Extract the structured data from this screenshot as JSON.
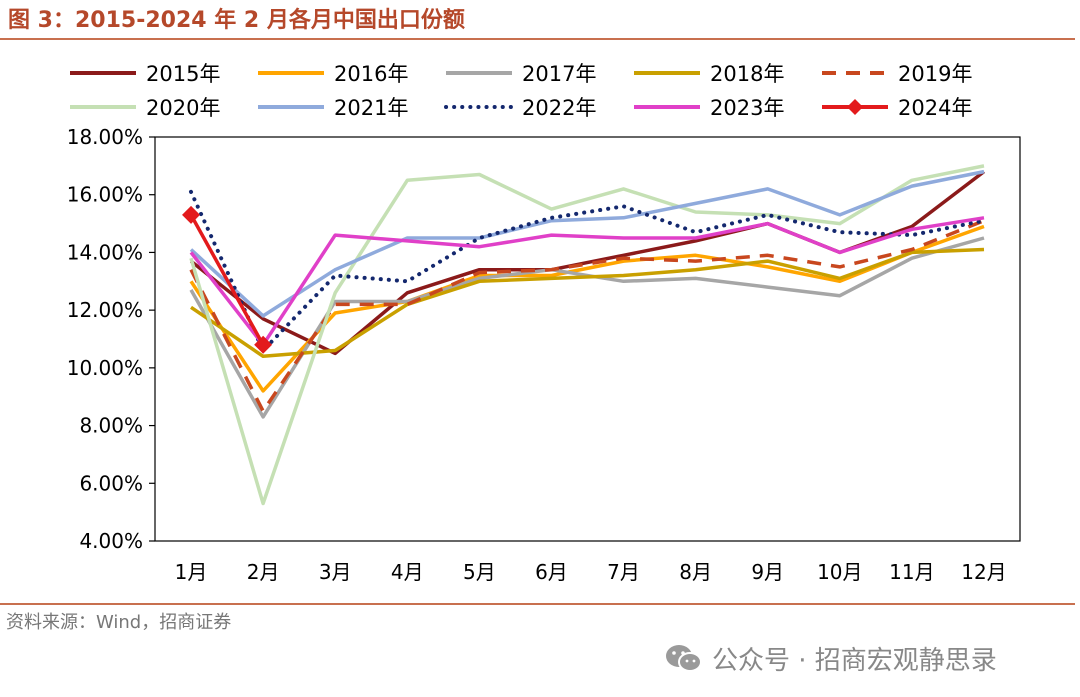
{
  "title": "图 3：2015-2024 年 2 月各月中国出口份额",
  "source": "资料来源：Wind，招商证券",
  "watermark": {
    "text": "公众号 · 招商宏观静思录",
    "icon": "wechat-icon"
  },
  "chart_data": {
    "type": "line",
    "title": "2015-2024 年 2 月各月中国出口份额",
    "xlabel": "",
    "ylabel": "",
    "ylim": [
      0.04,
      0.18
    ],
    "yticks": [
      "4.00%",
      "6.00%",
      "8.00%",
      "10.00%",
      "12.00%",
      "14.00%",
      "16.00%",
      "18.00%"
    ],
    "ytick_values": [
      0.04,
      0.06,
      0.08,
      0.1,
      0.12,
      0.14,
      0.16,
      0.18
    ],
    "categories": [
      "1月",
      "2月",
      "3月",
      "4月",
      "5月",
      "6月",
      "7月",
      "8月",
      "9月",
      "10月",
      "11月",
      "12月"
    ],
    "legend_position": "top",
    "series": [
      {
        "name": "2015年",
        "color": "#8b1a1a",
        "style": "solid",
        "values": [
          0.137,
          0.117,
          0.105,
          0.126,
          0.134,
          0.134,
          0.139,
          0.144,
          0.15,
          0.14,
          0.149,
          0.168
        ]
      },
      {
        "name": "2016年",
        "color": "#ffa500",
        "style": "solid",
        "values": [
          0.13,
          0.092,
          0.119,
          0.123,
          0.132,
          0.132,
          0.137,
          0.139,
          0.135,
          0.13,
          0.14,
          0.149
        ]
      },
      {
        "name": "2017年",
        "color": "#a6a6a6",
        "style": "solid",
        "values": [
          0.127,
          0.083,
          0.123,
          0.123,
          0.131,
          0.134,
          0.13,
          0.131,
          0.128,
          0.125,
          0.138,
          0.145
        ]
      },
      {
        "name": "2018年",
        "color": "#c9a000",
        "style": "solid",
        "values": [
          0.121,
          0.104,
          0.106,
          0.122,
          0.13,
          0.131,
          0.132,
          0.134,
          0.137,
          0.131,
          0.14,
          0.141
        ]
      },
      {
        "name": "2019年",
        "color": "#c8471e",
        "style": "dashed",
        "values": [
          0.134,
          0.085,
          0.122,
          0.122,
          0.133,
          0.134,
          0.138,
          0.137,
          0.139,
          0.135,
          0.141,
          0.151
        ]
      },
      {
        "name": "2020年",
        "color": "#c5e0b4",
        "style": "solid",
        "values": [
          0.138,
          0.053,
          0.126,
          0.165,
          0.167,
          0.155,
          0.162,
          0.154,
          0.153,
          0.15,
          0.165,
          0.17
        ]
      },
      {
        "name": "2021年",
        "color": "#8faadc",
        "style": "solid",
        "values": [
          0.141,
          0.118,
          0.134,
          0.145,
          0.145,
          0.151,
          0.152,
          0.157,
          0.162,
          0.153,
          0.163,
          0.168
        ]
      },
      {
        "name": "2022年",
        "color": "#14286e",
        "style": "dotted",
        "values": [
          0.161,
          0.106,
          0.132,
          0.13,
          0.145,
          0.152,
          0.156,
          0.147,
          0.153,
          0.147,
          0.146,
          0.151
        ]
      },
      {
        "name": "2023年",
        "color": "#e040c8",
        "style": "solid",
        "values": [
          0.14,
          0.108,
          0.146,
          0.144,
          0.142,
          0.146,
          0.145,
          0.145,
          0.15,
          0.14,
          0.148,
          0.152
        ]
      },
      {
        "name": "2024年",
        "color": "#e31a1c",
        "style": "marker",
        "values": [
          0.153,
          0.108,
          null,
          null,
          null,
          null,
          null,
          null,
          null,
          null,
          null,
          null
        ]
      }
    ]
  }
}
